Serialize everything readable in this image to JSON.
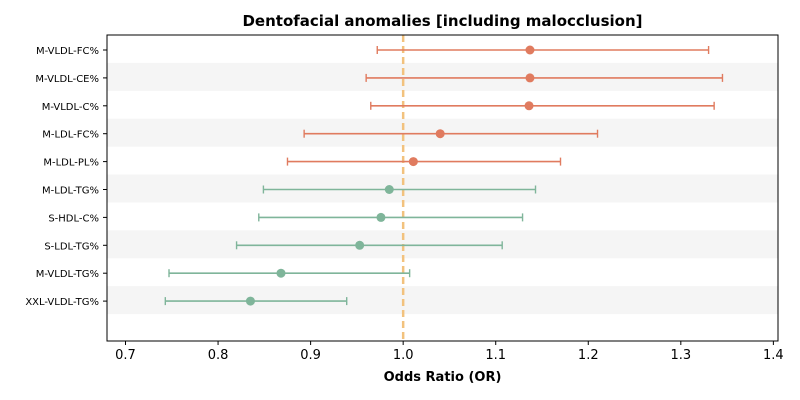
{
  "chart_data": {
    "type": "forest",
    "title": "Dentofacial anomalies [including malocclusion]",
    "xlabel": "Odds Ratio (OR)",
    "ylabel": "",
    "xlim": [
      0.68,
      1.405
    ],
    "xticks": [
      "0.7",
      "0.8",
      "0.9",
      "1.0",
      "1.1",
      "1.2",
      "1.3",
      "1.4"
    ],
    "reference_line": 1.0,
    "colors": {
      "above_one": "#E07B5F",
      "below_one": "#7FB59A",
      "reference": "#F2C27E",
      "band": "#F5F5F5"
    },
    "rows": [
      {
        "label": "M-VLDL-FC%",
        "or": 1.137,
        "lower": 0.972,
        "upper": 1.33
      },
      {
        "label": "M-VLDL-CE%",
        "or": 1.137,
        "lower": 0.96,
        "upper": 1.345
      },
      {
        "label": "M-VLDL-C%",
        "or": 1.136,
        "lower": 0.965,
        "upper": 1.336
      },
      {
        "label": "M-LDL-FC%",
        "or": 1.04,
        "lower": 0.893,
        "upper": 1.21
      },
      {
        "label": "M-LDL-PL%",
        "or": 1.011,
        "lower": 0.875,
        "upper": 1.17
      },
      {
        "label": "M-LDL-TG%",
        "or": 0.985,
        "lower": 0.849,
        "upper": 1.143
      },
      {
        "label": "S-HDL-C%",
        "or": 0.976,
        "lower": 0.844,
        "upper": 1.129
      },
      {
        "label": "S-LDL-TG%",
        "or": 0.953,
        "lower": 0.82,
        "upper": 1.107
      },
      {
        "label": "M-VLDL-TG%",
        "or": 0.868,
        "lower": 0.747,
        "upper": 1.007
      },
      {
        "label": "XXL-VLDL-TG%",
        "or": 0.835,
        "lower": 0.743,
        "upper": 0.939
      }
    ]
  }
}
